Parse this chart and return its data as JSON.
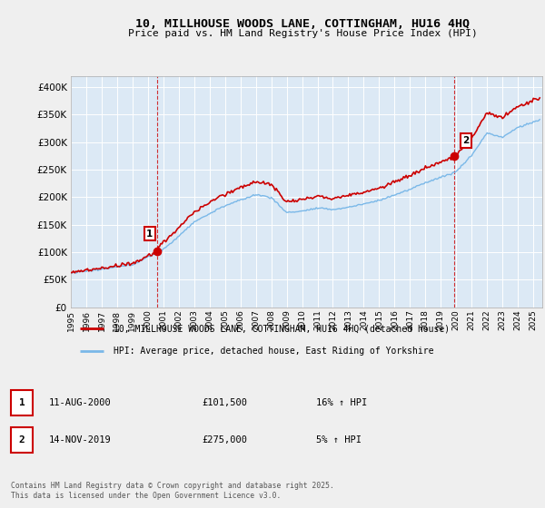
{
  "title": "10, MILLHOUSE WOODS LANE, COTTINGHAM, HU16 4HQ",
  "subtitle": "Price paid vs. HM Land Registry's House Price Index (HPI)",
  "legend_line1": "10, MILLHOUSE WOODS LANE, COTTINGHAM, HU16 4HQ (detached house)",
  "legend_line2": "HPI: Average price, detached house, East Riding of Yorkshire",
  "footer": "Contains HM Land Registry data © Crown copyright and database right 2025.\nThis data is licensed under the Open Government Licence v3.0.",
  "hpi_color": "#7ab8e8",
  "price_color": "#cc0000",
  "marker_color": "#cc0000",
  "background_color": "#efefef",
  "plot_bg_color": "#dce9f5",
  "grid_color": "#ffffff",
  "ylim": [
    0,
    420000
  ],
  "yticks": [
    0,
    50000,
    100000,
    150000,
    200000,
    250000,
    300000,
    350000,
    400000
  ],
  "note1_label": "1",
  "note1_date": "11-AUG-2000",
  "note1_price": "£101,500",
  "note1_hpi": "16% ↑ HPI",
  "note2_label": "2",
  "note2_date": "14-NOV-2019",
  "note2_price": "£275,000",
  "note2_hpi": "5% ↑ HPI",
  "sale1_price": 101500,
  "sale2_price": 275000
}
